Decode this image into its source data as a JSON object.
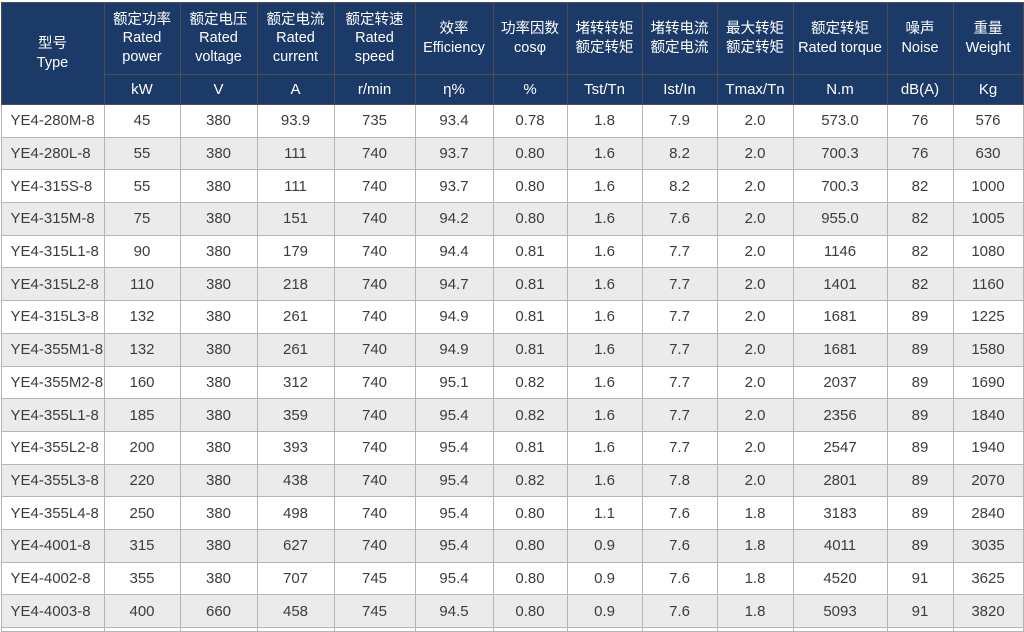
{
  "table": {
    "columns": [
      {
        "id": "type",
        "zh": "型号",
        "en": "Type",
        "unit": ""
      },
      {
        "id": "rated-power",
        "zh": "额定功率",
        "en": "Rated power",
        "unit": "kW"
      },
      {
        "id": "rated-voltage",
        "zh": "额定电压",
        "en": "Rated voltage",
        "unit": "V"
      },
      {
        "id": "rated-current",
        "zh": "额定电流",
        "en": "Rated current",
        "unit": "A"
      },
      {
        "id": "rated-speed",
        "zh": "额定转速",
        "en": "Rated speed",
        "unit": "r/min"
      },
      {
        "id": "efficiency",
        "zh": "效率",
        "en": "Efficiency",
        "unit": "η%"
      },
      {
        "id": "power-factor",
        "zh": "功率因数",
        "en": "cosφ",
        "unit": "%"
      },
      {
        "id": "locked-torque-ratio",
        "zh": "堵转转矩",
        "en": "额定转矩",
        "unit": "Tst/Tn"
      },
      {
        "id": "locked-current-ratio",
        "zh": "堵转电流",
        "en": "额定电流",
        "unit": "Ist/In"
      },
      {
        "id": "max-torque-ratio",
        "zh": "最大转矩",
        "en": "额定转矩",
        "unit": "Tmax/Tn"
      },
      {
        "id": "rated-torque",
        "zh": "额定转矩",
        "en": "Rated torque",
        "unit": "N.m"
      },
      {
        "id": "noise",
        "zh": "噪声",
        "en": "Noise",
        "unit": "dB(A)"
      },
      {
        "id": "weight",
        "zh": "重量",
        "en": "Weight",
        "unit": "Kg"
      }
    ],
    "rows": [
      [
        "YE4-280M-8",
        "45",
        "380",
        "93.9",
        "735",
        "93.4",
        "0.78",
        "1.8",
        "7.9",
        "2.0",
        "573.0",
        "76",
        "576"
      ],
      [
        "YE4-280L-8",
        "55",
        "380",
        "111",
        "740",
        "93.7",
        "0.80",
        "1.6",
        "8.2",
        "2.0",
        "700.3",
        "76",
        "630"
      ],
      [
        "YE4-315S-8",
        "55",
        "380",
        "111",
        "740",
        "93.7",
        "0.80",
        "1.6",
        "8.2",
        "2.0",
        "700.3",
        "82",
        "1000"
      ],
      [
        "YE4-315M-8",
        "75",
        "380",
        "151",
        "740",
        "94.2",
        "0.80",
        "1.6",
        "7.6",
        "2.0",
        "955.0",
        "82",
        "1005"
      ],
      [
        "YE4-315L1-8",
        "90",
        "380",
        "179",
        "740",
        "94.4",
        "0.81",
        "1.6",
        "7.7",
        "2.0",
        "1146",
        "82",
        "1080"
      ],
      [
        "YE4-315L2-8",
        "110",
        "380",
        "218",
        "740",
        "94.7",
        "0.81",
        "1.6",
        "7.7",
        "2.0",
        "1401",
        "82",
        "1160"
      ],
      [
        "YE4-315L3-8",
        "132",
        "380",
        "261",
        "740",
        "94.9",
        "0.81",
        "1.6",
        "7.7",
        "2.0",
        "1681",
        "89",
        "1225"
      ],
      [
        "YE4-355M1-8",
        "132",
        "380",
        "261",
        "740",
        "94.9",
        "0.81",
        "1.6",
        "7.7",
        "2.0",
        "1681",
        "89",
        "1580"
      ],
      [
        "YE4-355M2-8",
        "160",
        "380",
        "312",
        "740",
        "95.1",
        "0.82",
        "1.6",
        "7.7",
        "2.0",
        "2037",
        "89",
        "1690"
      ],
      [
        "YE4-355L1-8",
        "185",
        "380",
        "359",
        "740",
        "95.4",
        "0.82",
        "1.6",
        "7.7",
        "2.0",
        "2356",
        "89",
        "1840"
      ],
      [
        "YE4-355L2-8",
        "200",
        "380",
        "393",
        "740",
        "95.4",
        "0.81",
        "1.6",
        "7.7",
        "2.0",
        "2547",
        "89",
        "1940"
      ],
      [
        "YE4-355L3-8",
        "220",
        "380",
        "438",
        "740",
        "95.4",
        "0.82",
        "1.6",
        "7.8",
        "2.0",
        "2801",
        "89",
        "2070"
      ],
      [
        "YE4-355L4-8",
        "250",
        "380",
        "498",
        "740",
        "95.4",
        "0.80",
        "1.1",
        "7.6",
        "1.8",
        "3183",
        "89",
        "2840"
      ],
      [
        "YE4-4001-8",
        "315",
        "380",
        "627",
        "740",
        "95.4",
        "0.80",
        "0.9",
        "7.6",
        "1.8",
        "4011",
        "89",
        "3035"
      ],
      [
        "YE4-4002-8",
        "355",
        "380",
        "707",
        "745",
        "95.4",
        "0.80",
        "0.9",
        "7.6",
        "1.8",
        "4520",
        "91",
        "3625"
      ],
      [
        "YE4-4003-8",
        "400",
        "660",
        "458",
        "745",
        "94.5",
        "0.80",
        "0.9",
        "7.6",
        "1.8",
        "5093",
        "91",
        "3820"
      ]
    ],
    "colors": {
      "header_bg": "#1c3a68",
      "header_text": "#ffffff",
      "stripe_bg": "#ebebeb",
      "cell_border": "#b5b5b5",
      "header_border": "#4e4e4e",
      "data_text": "#3c3c3c"
    }
  }
}
